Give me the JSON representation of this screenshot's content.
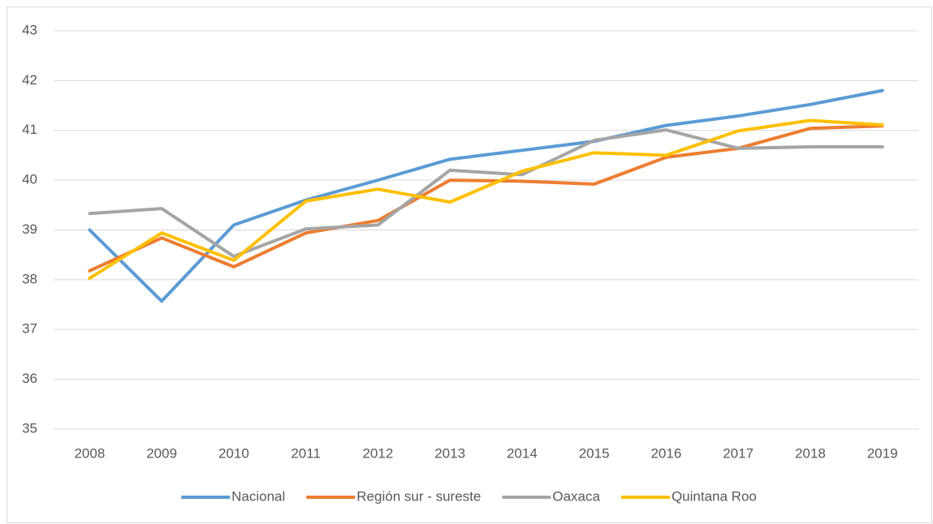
{
  "chart_data": {
    "type": "line",
    "categories": [
      "2008",
      "2009",
      "2010",
      "2011",
      "2012",
      "2013",
      "2014",
      "2015",
      "2016",
      "2017",
      "2018",
      "2019"
    ],
    "series": [
      {
        "name": "Nacional",
        "color": "#5b9bd5",
        "values": [
          39.0,
          37.57,
          39.1,
          39.6,
          40.0,
          40.42,
          40.6,
          40.78,
          41.1,
          41.29,
          41.52,
          41.8
        ]
      },
      {
        "name": "Región sur - sureste",
        "color": "#ed7d31",
        "values": [
          38.18,
          38.84,
          38.26,
          38.94,
          39.19,
          40.0,
          39.98,
          39.92,
          40.46,
          40.64,
          41.04,
          41.09
        ]
      },
      {
        "name": "Oaxaca",
        "color": "#a5a5a5",
        "values": [
          39.33,
          39.43,
          38.47,
          39.02,
          39.1,
          40.2,
          40.11,
          40.8,
          41.01,
          40.64,
          40.67,
          40.67
        ]
      },
      {
        "name": "Quintana Roo",
        "color": "#ffc000",
        "values": [
          38.03,
          38.94,
          38.39,
          39.58,
          39.82,
          39.56,
          40.18,
          40.55,
          40.5,
          40.99,
          41.2,
          41.11
        ]
      }
    ],
    "ylim": [
      35,
      43
    ],
    "yticks": [
      35,
      36,
      37,
      38,
      39,
      40,
      41,
      42,
      43
    ],
    "grid": true,
    "legend": "bottom"
  }
}
